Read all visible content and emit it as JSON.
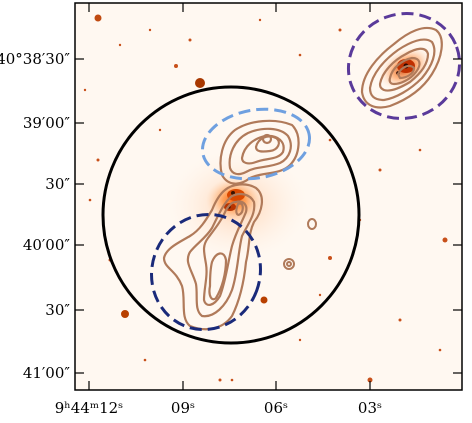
{
  "image": {
    "description_colors": {
      "background": "#fff8f1",
      "frame": "#000000",
      "contours": "#b07a5a",
      "circle_main": "#000000",
      "ellipse_top_right": "#5a3a9a",
      "ellipse_upper_lobe": "#6fa0e0",
      "ellipse_lower_lobe": "#1a2a7a",
      "core_emission": "#ff7a1a"
    }
  },
  "axes": {
    "y_ticks": [
      {
        "id": "y1",
        "text": "-40°38′30″"
      },
      {
        "id": "y2",
        "text": "39′00″"
      },
      {
        "id": "y3",
        "text": "30″"
      },
      {
        "id": "y4",
        "text": "40′00″"
      },
      {
        "id": "y5",
        "text": "30″"
      },
      {
        "id": "y6",
        "text": "41′00″"
      }
    ],
    "x_ticks": [
      {
        "id": "x1",
        "text": "9ʰ44ᵐ12ˢ"
      },
      {
        "id": "x2",
        "text": "09ˢ"
      },
      {
        "id": "x3",
        "text": "06ˢ"
      },
      {
        "id": "x4",
        "text": "03ˢ"
      }
    ]
  }
}
